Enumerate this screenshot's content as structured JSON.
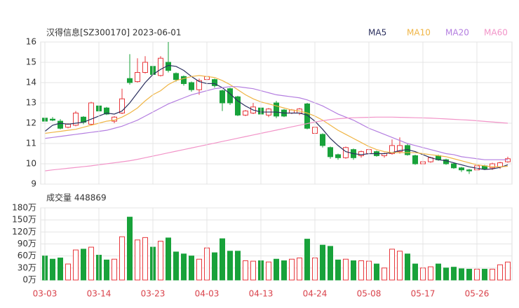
{
  "chart_data": [
    {
      "type": "candlestick",
      "title": "汉得信息[SZ300170] 2023-06-01",
      "up_color": "#e8383d",
      "down_color": "#18a23a",
      "open": [
        12.25,
        12.2,
        12.1,
        11.8,
        11.9,
        12.3,
        11.95,
        12.85,
        12.75,
        12.1,
        12.5,
        14.2,
        14.05,
        14.5,
        14.8,
        14.35,
        15.0,
        14.45,
        14.3,
        14.0,
        13.65,
        14.15,
        14.15,
        13.6,
        13.7,
        13.3,
        12.4,
        12.5,
        12.75,
        12.4,
        13.0,
        12.65,
        12.5,
        12.5,
        12.95,
        11.5,
        11.45,
        10.8,
        10.45,
        10.3,
        10.7,
        10.4,
        10.5,
        10.6,
        10.4,
        10.5,
        10.6,
        10.9,
        10.4,
        10.0,
        10.1,
        10.4,
        10.2,
        10.0,
        9.8,
        9.7,
        9.7,
        9.9,
        9.8,
        9.85,
        10.1
      ],
      "high": [
        12.3,
        12.3,
        12.2,
        12.0,
        12.6,
        12.35,
        13.05,
        12.9,
        12.8,
        12.35,
        13.7,
        15.4,
        15.2,
        15.3,
        14.85,
        15.3,
        16.0,
        14.5,
        14.35,
        14.05,
        14.2,
        14.35,
        14.2,
        13.65,
        13.75,
        13.35,
        12.65,
        13.0,
        12.8,
        12.75,
        13.1,
        12.7,
        12.7,
        12.75,
        13.0,
        11.9,
        11.5,
        10.85,
        10.5,
        10.85,
        10.75,
        10.65,
        10.8,
        10.65,
        10.55,
        11.2,
        11.3,
        11.0,
        10.45,
        10.15,
        10.35,
        10.45,
        10.25,
        10.05,
        9.85,
        9.75,
        9.95,
        9.95,
        10.05,
        10.1,
        10.35
      ],
      "low": [
        11.95,
        12.1,
        11.7,
        11.75,
        11.85,
        11.95,
        11.9,
        12.5,
        12.4,
        12.0,
        12.45,
        13.9,
        14.0,
        14.45,
        14.3,
        14.3,
        14.5,
        14.05,
        13.85,
        13.55,
        13.4,
        14.05,
        13.75,
        12.6,
        12.9,
        12.35,
        12.35,
        12.45,
        12.4,
        12.3,
        12.25,
        12.3,
        12.45,
        12.4,
        11.7,
        11.4,
        10.8,
        10.25,
        10.2,
        10.25,
        10.2,
        10.3,
        10.4,
        10.35,
        10.3,
        10.45,
        10.5,
        10.4,
        9.95,
        9.95,
        10.05,
        10.15,
        9.95,
        9.75,
        9.6,
        9.5,
        9.65,
        9.7,
        9.7,
        9.75,
        10.05
      ],
      "close": [
        12.1,
        12.15,
        11.75,
        11.95,
        12.5,
        12.05,
        13.0,
        12.6,
        12.45,
        12.3,
        13.2,
        14.0,
        14.5,
        15.0,
        14.4,
        15.2,
        14.6,
        14.15,
        13.95,
        13.65,
        14.1,
        14.3,
        13.85,
        13.0,
        13.0,
        12.4,
        12.6,
        12.8,
        12.45,
        12.7,
        12.35,
        12.35,
        12.65,
        12.7,
        11.75,
        11.8,
        10.9,
        10.35,
        10.3,
        10.8,
        10.3,
        10.6,
        10.7,
        10.4,
        10.5,
        10.9,
        10.9,
        10.45,
        10.0,
        10.1,
        10.3,
        10.2,
        10.0,
        9.8,
        9.7,
        9.65,
        9.9,
        9.75,
        10.0,
        10.05,
        10.25
      ],
      "series": [
        {
          "name": "MA5",
          "color": "#2b2f5e",
          "values": [
            11.6,
            11.9,
            12.0,
            11.95,
            12.0,
            12.05,
            12.2,
            12.35,
            12.5,
            12.45,
            12.6,
            13.0,
            13.5,
            14.0,
            14.4,
            14.65,
            14.85,
            14.8,
            14.6,
            14.3,
            14.05,
            13.95,
            13.95,
            13.75,
            13.45,
            13.1,
            12.85,
            12.65,
            12.55,
            12.55,
            12.55,
            12.5,
            12.5,
            12.5,
            12.4,
            12.1,
            11.7,
            11.25,
            10.9,
            10.6,
            10.5,
            10.45,
            10.5,
            10.5,
            10.5,
            10.55,
            10.65,
            10.7,
            10.6,
            10.45,
            10.3,
            10.2,
            10.15,
            10.05,
            9.95,
            9.85,
            9.78,
            9.72,
            9.75,
            9.82,
            9.95
          ]
        },
        {
          "name": "MA10",
          "color": "#f0b545",
          "values": [
            11.5,
            11.55,
            11.6,
            11.65,
            11.7,
            11.8,
            11.9,
            12.0,
            12.1,
            12.15,
            12.3,
            12.5,
            12.75,
            13.1,
            13.4,
            13.6,
            13.9,
            14.1,
            14.2,
            14.3,
            14.35,
            14.3,
            14.25,
            14.1,
            13.9,
            13.65,
            13.4,
            13.2,
            13.05,
            12.95,
            12.85,
            12.75,
            12.65,
            12.6,
            12.5,
            12.35,
            12.15,
            11.9,
            11.65,
            11.45,
            11.25,
            11.05,
            10.85,
            10.7,
            10.6,
            10.55,
            10.55,
            10.55,
            10.55,
            10.5,
            10.45,
            10.4,
            10.35,
            10.25,
            10.15,
            10.05,
            9.95,
            9.9,
            9.85,
            9.85,
            9.88
          ]
        },
        {
          "name": "MA20",
          "color": "#b47ee0",
          "values": [
            11.25,
            11.3,
            11.35,
            11.4,
            11.45,
            11.5,
            11.55,
            11.6,
            11.65,
            11.75,
            11.85,
            12.0,
            12.15,
            12.35,
            12.55,
            12.75,
            12.95,
            13.1,
            13.25,
            13.4,
            13.5,
            13.6,
            13.7,
            13.75,
            13.8,
            13.8,
            13.75,
            13.7,
            13.6,
            13.5,
            13.4,
            13.35,
            13.3,
            13.25,
            13.15,
            13.0,
            12.85,
            12.65,
            12.45,
            12.3,
            12.15,
            11.95,
            11.75,
            11.6,
            11.45,
            11.3,
            11.15,
            11.0,
            10.9,
            10.8,
            10.7,
            10.6,
            10.5,
            10.45,
            10.35,
            10.3,
            10.25,
            10.2,
            10.2,
            10.2,
            10.2
          ]
        },
        {
          "name": "MA60",
          "color": "#f294c8",
          "values": [
            9.65,
            9.7,
            9.74,
            9.78,
            9.82,
            9.86,
            9.9,
            9.95,
            10.0,
            10.05,
            10.1,
            10.15,
            10.22,
            10.3,
            10.38,
            10.46,
            10.54,
            10.62,
            10.7,
            10.78,
            10.86,
            10.94,
            11.02,
            11.1,
            11.18,
            11.26,
            11.34,
            11.42,
            11.5,
            11.58,
            11.66,
            11.74,
            11.82,
            11.9,
            11.98,
            12.06,
            12.12,
            12.18,
            12.22,
            12.25,
            12.27,
            12.28,
            12.29,
            12.3,
            12.3,
            12.3,
            12.29,
            12.28,
            12.27,
            12.26,
            12.25,
            12.23,
            12.21,
            12.19,
            12.17,
            12.15,
            12.12,
            12.09,
            12.06,
            12.03,
            12.0
          ]
        }
      ],
      "ylim": [
        9,
        16
      ],
      "yticks": [
        9,
        10,
        11,
        12,
        13,
        14,
        15,
        16
      ],
      "grid": true
    },
    {
      "type": "bar",
      "title": "成交量 448869",
      "categories": [
        "03-03",
        null,
        null,
        null,
        null,
        null,
        null,
        "03-14",
        null,
        null,
        null,
        null,
        null,
        null,
        "03-23",
        null,
        null,
        null,
        null,
        null,
        null,
        "04-03",
        null,
        null,
        null,
        null,
        null,
        null,
        "04-13",
        null,
        null,
        null,
        null,
        null,
        null,
        "04-24",
        null,
        null,
        null,
        null,
        null,
        null,
        "05-08",
        null,
        null,
        null,
        null,
        null,
        null,
        "05-17",
        null,
        null,
        null,
        null,
        null,
        null,
        "05-26",
        null,
        null,
        null,
        null
      ],
      "values": [
        60,
        52,
        55,
        40,
        75,
        77,
        82,
        62,
        50,
        52,
        108,
        157,
        100,
        106,
        82,
        97,
        105,
        70,
        65,
        60,
        52,
        80,
        68,
        103,
        72,
        72,
        48,
        47,
        48,
        45,
        52,
        48,
        52,
        55,
        102,
        55,
        87,
        84,
        50,
        52,
        48,
        48,
        47,
        40,
        30,
        77,
        72,
        65,
        40,
        30,
        33,
        40,
        30,
        32,
        28,
        27,
        27,
        27,
        27,
        38,
        44.8869
      ],
      "ylim": [
        0,
        180
      ],
      "yticks": [
        {
          "value": 0,
          "label": "0万"
        },
        {
          "value": 30,
          "label": "30万"
        },
        {
          "value": 60,
          "label": "60万"
        },
        {
          "value": 90,
          "label": "90万"
        },
        {
          "value": 120,
          "label": "120万"
        },
        {
          "value": 150,
          "label": "150万"
        },
        {
          "value": 180,
          "label": "180万"
        }
      ],
      "grid": true
    }
  ]
}
